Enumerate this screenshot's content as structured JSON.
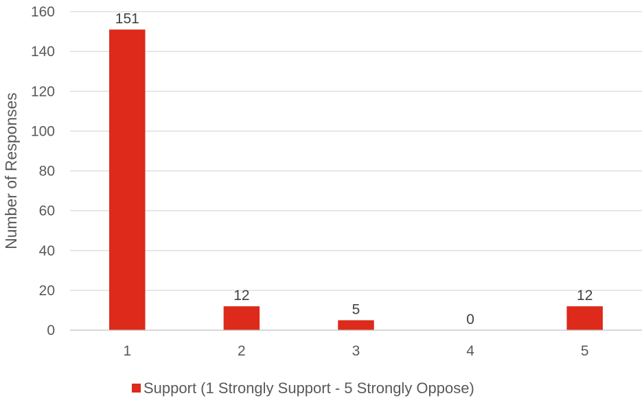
{
  "chart_data": {
    "type": "bar",
    "categories": [
      "1",
      "2",
      "3",
      "4",
      "5"
    ],
    "series": [
      {
        "name": "Support (1 Strongly Support - 5 Strongly Oppose)",
        "values": [
          151,
          12,
          5,
          0,
          12
        ],
        "color": "#dd2a1b"
      }
    ],
    "title": "",
    "xlabel": "",
    "ylabel": "Number of Responses",
    "ylim": [
      0,
      160
    ],
    "yticks": [
      0,
      20,
      40,
      60,
      80,
      100,
      120,
      140,
      160
    ],
    "grid": true,
    "legend_position": "bottom",
    "data_labels": true
  }
}
